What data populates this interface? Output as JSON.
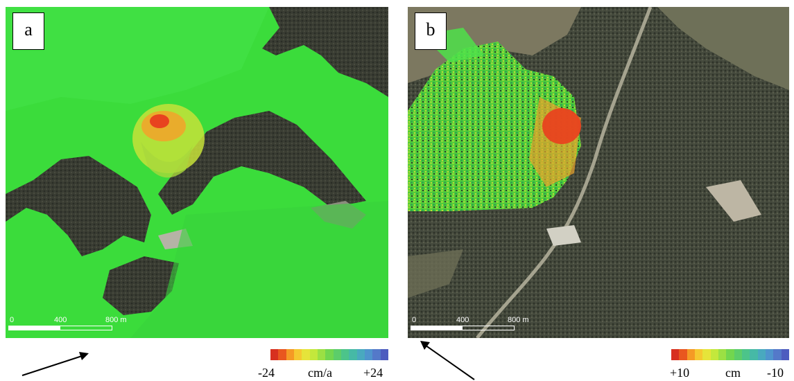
{
  "panels": {
    "a": {
      "label": "a"
    },
    "b": {
      "label": "b"
    }
  },
  "scalebar": {
    "tick0": "0",
    "tick1": "400",
    "tick2": "800 m"
  },
  "legend_a": {
    "left": "-24",
    "unit": "cm/a",
    "right": "+24"
  },
  "legend_b": {
    "left": "+10",
    "unit": "cm",
    "right": "-10"
  },
  "colorbar_colors": [
    "#d7301f",
    "#e9571f",
    "#f59a25",
    "#f5c830",
    "#e6e43a",
    "#c3e83c",
    "#9be044",
    "#72d64f",
    "#5ccd6a",
    "#4cc48a",
    "#46b9a6",
    "#49a9bf",
    "#4f94cd",
    "#5479c9",
    "#4d5cbf"
  ],
  "colors": {
    "green_overlay": "#33e033",
    "terrain_dark": "#3c3f35",
    "hot": "#e8431f"
  }
}
